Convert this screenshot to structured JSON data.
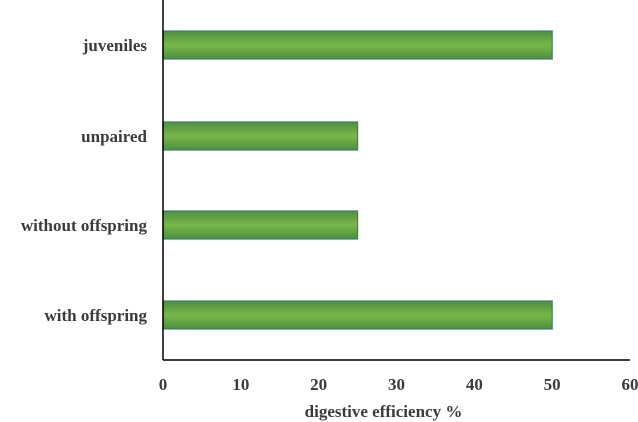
{
  "chart_data": {
    "type": "bar",
    "orientation": "horizontal",
    "categories": [
      "with offspring",
      "without offspring",
      "unpaired",
      "juveniles"
    ],
    "values": [
      50,
      25,
      25,
      50
    ],
    "title": "",
    "xlabel": "digestive efficiency %",
    "ylabel": "",
    "xlim": [
      0,
      60
    ],
    "xticks": [
      0,
      10,
      20,
      30,
      40,
      50,
      60
    ],
    "grid": false,
    "legend": "none",
    "colors": {
      "bar_center": "#79b649",
      "bar_edge": "#4d8f3e",
      "bar_stroke": "#3f7d6b",
      "axis": "#000000",
      "text": "#3b3b3b"
    }
  }
}
